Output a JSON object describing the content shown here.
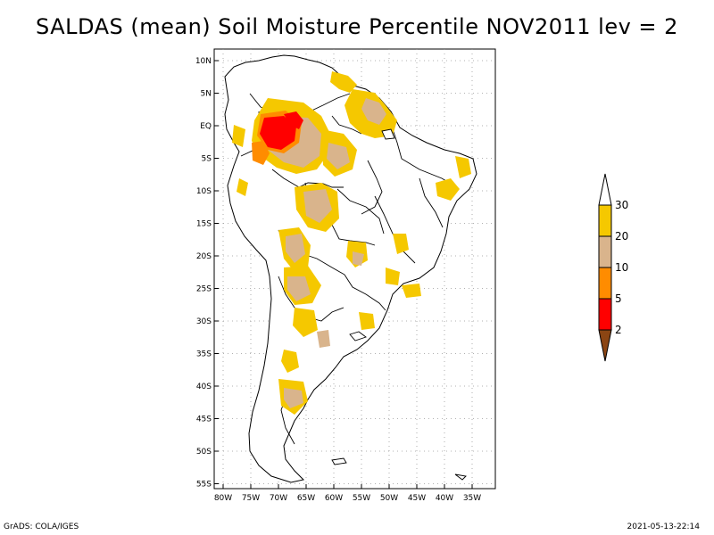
{
  "title": "SALDAS (mean) Soil Moisture Percentile NOV2011 lev = 2",
  "map": {
    "lat_labels": [
      "10N",
      "5N",
      "EQ",
      "5S",
      "10S",
      "15S",
      "20S",
      "25S",
      "30S",
      "35S",
      "40S",
      "45S",
      "50S",
      "55S"
    ],
    "lon_labels": [
      "80W",
      "75W",
      "70W",
      "65W",
      "60W",
      "55W",
      "50W",
      "45W",
      "40W",
      "35W"
    ]
  },
  "colorbar": {
    "labels": [
      "30",
      "20",
      "10",
      "5",
      "2"
    ],
    "colors": [
      "#ffffff",
      "#f5c800",
      "#d9b48c",
      "#ff8c00",
      "#ff0000",
      "#8b4513"
    ]
  },
  "footer": {
    "left": "GrADS: COLA/IGES",
    "right": "2021-05-13-22:14"
  }
}
